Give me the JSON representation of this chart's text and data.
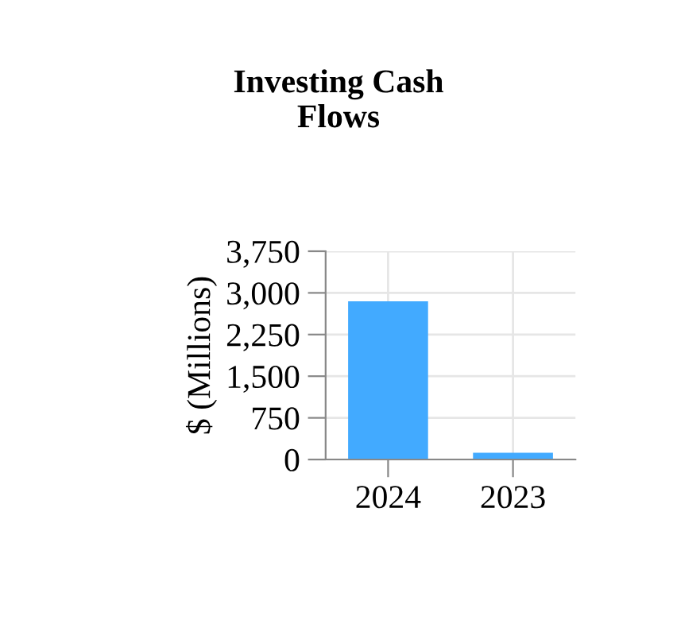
{
  "chart_data": {
    "type": "bar",
    "title": "Investing Cash\nFlows",
    "ylabel": "$ (Millions)",
    "categories": [
      "2024",
      "2023"
    ],
    "values": [
      2850,
      120
    ],
    "color": "#42aaff",
    "ylim": [
      0,
      3750
    ],
    "yticks": [
      {
        "value": 0,
        "label": "0"
      },
      {
        "value": 750,
        "label": "750"
      },
      {
        "value": 1500,
        "label": "1,500"
      },
      {
        "value": 2250,
        "label": "2,250"
      },
      {
        "value": 3000,
        "label": "3,000"
      },
      {
        "value": 3750,
        "label": "3,750"
      }
    ],
    "grid": true
  }
}
